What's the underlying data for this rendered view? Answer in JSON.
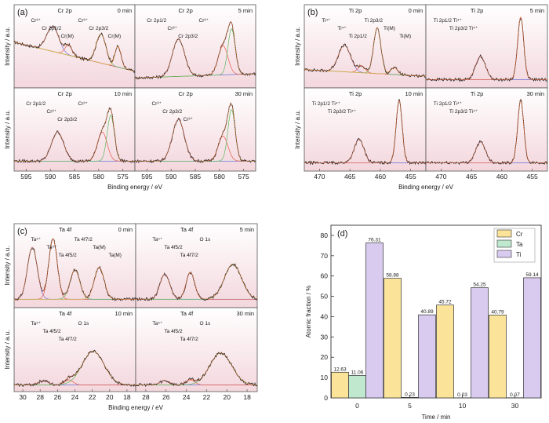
{
  "xps_panels": [
    {
      "letter": "(a)",
      "xlabel": "Binding energy / eV",
      "ylabel": "Intensity / a.u.",
      "xticks": [
        "595",
        "590",
        "585",
        "580",
        "575"
      ],
      "cells": [
        {
          "element": "Cr 2p",
          "time": "0 min",
          "annotations": [
            "Cr³⁺",
            "Cr 2p1/2",
            "Cr(M)",
            "Cr³⁺",
            "Cr 2p3/2",
            "Cr(M)"
          ]
        },
        {
          "element": "Cr 2p",
          "time": "5 min",
          "annotations": [
            "Cr 2p1/2",
            "Cr³⁺",
            "Cr 2p3/2",
            "Cr³⁺"
          ]
        },
        {
          "element": "Cr 2p",
          "time": "10 min",
          "annotations": [
            "Cr 2p1/2",
            "Cr³⁺",
            "Cr 2p3/2",
            "Cr³⁺"
          ]
        },
        {
          "element": "Cr 2p",
          "time": "30 min",
          "annotations": [
            "Cr³⁺",
            "Cr 2p3/2",
            "Cr³⁺"
          ]
        }
      ]
    },
    {
      "letter": "(b)",
      "xlabel": "Binding energy / eV",
      "ylabel": "Intensity / a.u.",
      "xticks": [
        "470",
        "465",
        "460",
        "455"
      ],
      "cells": [
        {
          "element": "Ti 2p",
          "time": "0 min",
          "annotations": [
            "Ti⁴⁺",
            "Ti⁴⁺",
            "Ti 2p1/2",
            "Ti 2p3/2",
            "Ti(M)",
            "Ti(M)"
          ]
        },
        {
          "element": "Ti 2p",
          "time": "5 min",
          "annotations": [
            "Ti 2p1/2 Ti⁴⁺",
            "Ti 2p3/2 Ti⁴⁺"
          ]
        },
        {
          "element": "Ti 2p",
          "time": "10 min",
          "annotations": [
            "Ti 2p1/2 Ti⁴⁺",
            "Ti 2p3/2 Ti⁴⁺"
          ]
        },
        {
          "element": "Ti 2p",
          "time": "30 min",
          "annotations": [
            "Ti 2p1/2 Ti⁴⁺",
            "Ti 2p3/2 Ti⁴⁺"
          ]
        }
      ]
    },
    {
      "letter": "(c)",
      "xlabel": "Binding energy / eV",
      "ylabel": "Intensity / a.u.",
      "xticks_left": [
        "30",
        "28",
        "26",
        "24",
        "22",
        "20",
        "18"
      ],
      "xticks_right": [
        "28",
        "26",
        "24",
        "22",
        "20",
        "18"
      ],
      "cells": [
        {
          "element": "Ta 4f",
          "time": "0 min",
          "annotations": [
            "Ta⁵⁺",
            "Ta⁵⁺",
            "Ta 4f5/2",
            "Ta 4f7/2",
            "Ta(M)",
            "Ta(M)"
          ]
        },
        {
          "element": "Ta 4f",
          "time": "5 min",
          "annotations": [
            "Ta⁵⁺",
            "Ta 4f5/2",
            "Ta 4f7/2",
            "O 1s"
          ]
        },
        {
          "element": "Ta 4f",
          "time": "10 min",
          "annotations": [
            "Ta⁵⁺",
            "Ta 4f5/2",
            "Ta 4f7/2",
            "O 1s"
          ]
        },
        {
          "element": "Ta 4f",
          "time": "30 min",
          "annotations": [
            "Ta⁵⁺",
            "Ta 4f5/2",
            "Ta 4f7/2",
            "O 1s"
          ]
        }
      ]
    }
  ],
  "chart_data": {
    "type": "bar",
    "panel_letter": "(d)",
    "categories": [
      "0",
      "5",
      "10",
      "30"
    ],
    "series": [
      {
        "name": "Cr",
        "color": "#fbe39a",
        "values": [
          12.63,
          58.88,
          45.72,
          40.79
        ]
      },
      {
        "name": "Ta",
        "color": "#bfe8cf",
        "values": [
          11.06,
          0.23,
          0.03,
          0.07
        ]
      },
      {
        "name": "Ti",
        "color": "#d9cbf0",
        "values": [
          76.31,
          40.89,
          54.25,
          59.14
        ]
      }
    ],
    "value_labels": [
      [
        "12.63",
        "58.88",
        "45.72",
        "40.79"
      ],
      [
        "11.06",
        "0.23",
        "0.03",
        "0.07"
      ],
      [
        "76.31",
        "40.89",
        "54.25",
        "59.14"
      ]
    ],
    "xlabel": "Time / min",
    "ylabel": "Atomic fraction / %",
    "ylim": [
      0,
      85
    ],
    "yticks": [
      "0",
      "10",
      "20",
      "30",
      "40",
      "50",
      "60",
      "70",
      "80"
    ],
    "legend_position": "top-right",
    "grid": false
  }
}
